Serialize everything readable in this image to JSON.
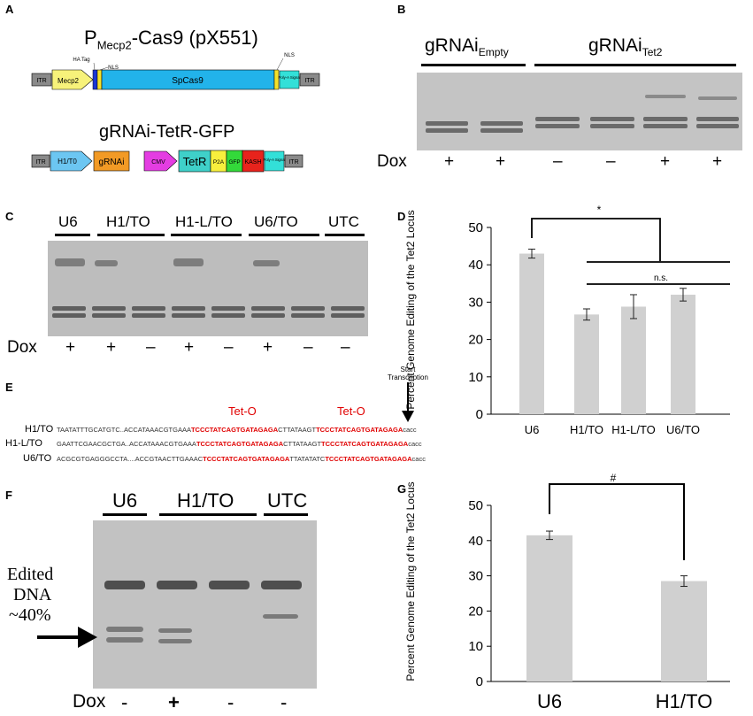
{
  "panels": {
    "a": "A",
    "b": "B",
    "c": "C",
    "d": "D",
    "e": "E",
    "f": "F",
    "g": "G"
  },
  "panelA": {
    "construct1_title_main": "P",
    "construct1_title_sub": "Mecp2",
    "construct1_title_rest": "-Cas9 (pX551)",
    "construct1_parts": {
      "itr_left": "ITR",
      "promoter": "Mecp2",
      "ha_tag": "HA Tag",
      "nls1": "NLS",
      "cas9": "SpCas9",
      "nls2": "NLS",
      "polya": "Poly-A Signal",
      "itr_right": "ITR"
    },
    "construct2_title": "gRNAi-TetR-GFP",
    "construct2_parts": {
      "itr_left": "ITR",
      "promoter": "H1/T0",
      "grnai": "gRNAi",
      "cmv": "CMV",
      "tetr": "TetR",
      "p2a": "P2A",
      "gfp": "GFP",
      "kash": "KASH",
      "polya": "Poly-A Signal",
      "itr_right": "ITR"
    }
  },
  "panelB": {
    "group1_main": "gRNAi",
    "group1_sub": "Empty",
    "group2_main": "gRNAi",
    "group2_sub": "Tet2",
    "dox_label": "Dox",
    "dox": [
      "+",
      "+",
      "–",
      "–",
      "+",
      "+"
    ]
  },
  "panelC": {
    "groups": [
      "U6",
      "H1/TO",
      "H1-L/TO",
      "U6/TO",
      "UTC"
    ],
    "dox_label": "Dox",
    "dox": [
      "+",
      "+",
      "–",
      "+",
      "–",
      "+",
      "–",
      "–"
    ]
  },
  "panelE": {
    "start_label_line1": "Start",
    "start_label_line2": "Transcription",
    "teto1": "Tet-O",
    "teto2": "Tet-O",
    "rows": [
      {
        "name": "H1/TO",
        "a": "TAATATTTGCATGTC..ACCATAAACGTGAAA",
        "t1": "TCCCTATCAGTGATAGAGA",
        "b": "CTTATAAGT",
        "t2": "TCCCTATCAGTGATAGAGA",
        "c": "cacc"
      },
      {
        "name": "H1-L/TO",
        "a": "GAATTCGAACGCTGA..ACCATAAACGTGAAA",
        "t1": "TCCCTATCAGTGATAGAGA",
        "b": "CTTATAAGT",
        "t2": "TCCCTATCAGTGATAGAGA",
        "c": "cacc"
      },
      {
        "name": "U6/TO",
        "a": "ACGCGTGAGGGCCTA....ACCGTAACTTGAAAC",
        "t1": "TCCCTATCAGTGATAGAGA",
        "b": "TTATATATC",
        "t2": "TCCCTATCAGTGATAGAGA",
        "c": "cacc"
      }
    ]
  },
  "panelF": {
    "groups": [
      "U6",
      "H1/TO",
      "UTC"
    ],
    "edited_line1": "Edited",
    "edited_line2": "DNA",
    "edited_line3": "~40%",
    "dox_label": "Dox",
    "dox": [
      "-",
      "+",
      "-",
      "-"
    ]
  },
  "chart_data": [
    {
      "type": "bar",
      "panel": "D",
      "categories": [
        "U6",
        "H1/TO",
        "H1-L/TO",
        "U6/TO"
      ],
      "values": [
        43,
        26.7,
        28.8,
        32
      ],
      "errors": [
        1.2,
        1.5,
        3.2,
        1.7
      ],
      "ylabel": "Percent Genome Editing of the Tet2 Locus",
      "ylim": [
        0,
        50
      ],
      "yticks": [
        "0",
        "10",
        "20",
        "30",
        "40",
        "50"
      ],
      "annotations": [
        "*",
        "n.s."
      ],
      "bar_color": "#d0d0d0"
    },
    {
      "type": "bar",
      "panel": "G",
      "categories": [
        "U6",
        "H1/TO"
      ],
      "values": [
        41.5,
        28.5
      ],
      "errors": [
        1.2,
        1.5
      ],
      "ylabel": "Percent Genome Editing of the Tet2 Locus",
      "ylim": [
        0,
        50
      ],
      "yticks": [
        "0",
        "10",
        "20",
        "30",
        "40",
        "50"
      ],
      "annotations": [
        "#"
      ],
      "bar_color": "#d0d0d0"
    }
  ]
}
